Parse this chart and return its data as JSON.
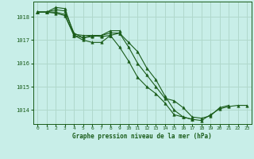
{
  "title": "Graphe pression niveau de la mer (hPa)",
  "background_color": "#c8eee8",
  "grid_color": "#b0d8cc",
  "line_color": "#1a5c1a",
  "marker_color": "#1a5c1a",
  "xlim": [
    -0.5,
    23.5
  ],
  "ylim": [
    1013.4,
    1018.65
  ],
  "yticks": [
    1014,
    1015,
    1016,
    1017,
    1018
  ],
  "xticks": [
    0,
    1,
    2,
    3,
    4,
    5,
    6,
    7,
    8,
    9,
    10,
    11,
    12,
    13,
    14,
    15,
    16,
    17,
    18,
    19,
    20,
    21,
    22,
    23
  ],
  "series": [
    [
      1018.2,
      1018.2,
      1018.15,
      1018.05,
      1017.2,
      1017.0,
      1016.9,
      1016.9,
      1017.2,
      1016.7,
      1016.1,
      1015.4,
      1015.0,
      1014.7,
      1014.3,
      1013.8,
      1013.7,
      1013.6,
      1013.55,
      1013.8,
      1014.05,
      1014.15,
      1014.2,
      1014.2
    ],
    [
      1018.2,
      1018.2,
      1018.3,
      1018.25,
      1017.3,
      1017.1,
      1017.15,
      1017.2,
      1017.3,
      1017.3,
      1016.9,
      1016.5,
      1015.8,
      1015.3,
      1014.6,
      1014.0,
      1013.7,
      1013.6,
      null,
      null,
      null,
      null,
      null,
      null
    ],
    [
      1018.2,
      1018.2,
      1018.2,
      1018.1,
      1017.2,
      1017.1,
      1017.2,
      1017.15,
      1017.2,
      1017.3,
      1016.7,
      1016.0,
      1015.5,
      1015.0,
      1014.5,
      1014.4,
      1014.1,
      1013.7,
      1013.65,
      1013.75,
      1014.1,
      1014.2,
      null,
      null
    ],
    [
      1018.2,
      1018.2,
      1018.4,
      1018.35,
      1017.25,
      1017.2,
      1017.2,
      1017.2,
      1017.4,
      1017.4,
      null,
      null,
      null,
      null,
      null,
      null,
      null,
      null,
      null,
      null,
      null,
      null,
      null,
      null
    ]
  ]
}
